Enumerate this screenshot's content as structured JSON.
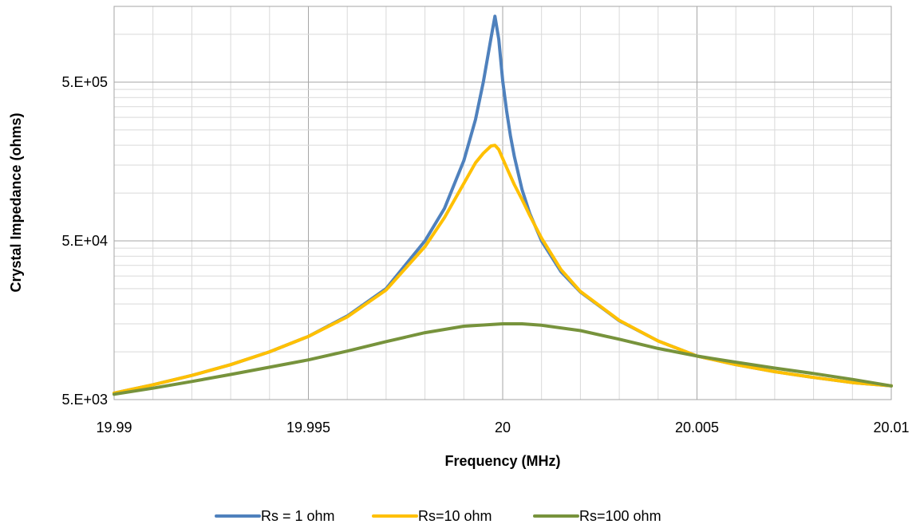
{
  "chart_data": {
    "type": "line",
    "title": "",
    "xlabel": "Frequency (MHz)",
    "ylabel": "Crystal Impedance (ohms)",
    "x_scale": "linear",
    "y_scale": "log",
    "xlim": [
      19.99,
      20.01
    ],
    "ylim": [
      5000,
      1500000
    ],
    "x_ticks": [
      {
        "value": 19.99,
        "label": "19.99"
      },
      {
        "value": 19.995,
        "label": "19.995"
      },
      {
        "value": 20.0,
        "label": "20"
      },
      {
        "value": 20.005,
        "label": "20.005"
      },
      {
        "value": 20.01,
        "label": "20.01"
      }
    ],
    "y_ticks": [
      {
        "value": 5000,
        "label": "5.E+03"
      },
      {
        "value": 50000,
        "label": "5.E+04"
      },
      {
        "value": 500000,
        "label": "5.E+05"
      }
    ],
    "grid": true,
    "legend_position": "bottom",
    "series": [
      {
        "name": "Rs = 1 ohm",
        "color": "#4f81bd",
        "x": [
          19.99,
          19.991,
          19.992,
          19.993,
          19.994,
          19.995,
          19.996,
          19.997,
          19.998,
          19.9985,
          19.999,
          19.9993,
          19.9995,
          19.9997,
          19.9998,
          19.9999,
          20.0,
          20.0001,
          20.0002,
          20.0003,
          20.0005,
          20.0007,
          20.001,
          20.0015,
          20.002,
          20.003,
          20.004,
          20.005,
          20.006,
          20.007,
          20.008,
          20.009,
          20.01
        ],
        "y": [
          5500,
          6200,
          7100,
          8300,
          10000,
          12500,
          16800,
          25000,
          50000,
          80000,
          160000,
          290000,
          500000,
          950000,
          1300000,
          930000,
          510000,
          330000,
          230000,
          170000,
          105000,
          74000,
          50000,
          32000,
          23800,
          15700,
          11700,
          9400,
          8300,
          7500,
          6900,
          6400,
          6100
        ]
      },
      {
        "name": "Rs=10 ohm",
        "color": "#ffc000",
        "x": [
          19.99,
          19.991,
          19.992,
          19.993,
          19.994,
          19.995,
          19.996,
          19.997,
          19.998,
          19.9985,
          19.999,
          19.9993,
          19.9995,
          19.9997,
          19.9998,
          19.9999,
          20.0,
          20.0001,
          20.0002,
          20.0003,
          20.0005,
          20.0007,
          20.001,
          20.0015,
          20.002,
          20.003,
          20.004,
          20.005,
          20.006,
          20.007,
          20.008,
          20.009,
          20.01
        ],
        "y": [
          5500,
          6200,
          7100,
          8300,
          10000,
          12500,
          16600,
          24500,
          46000,
          70000,
          115000,
          155000,
          178000,
          198000,
          200000,
          188000,
          165000,
          145000,
          128000,
          113000,
          91000,
          72000,
          52000,
          33000,
          24000,
          15800,
          11700,
          9400,
          8300,
          7500,
          6900,
          6400,
          6100
        ]
      },
      {
        "name": "Rs=100 ohm",
        "color": "#77933c",
        "x": [
          19.99,
          19.991,
          19.992,
          19.993,
          19.994,
          19.995,
          19.996,
          19.997,
          19.998,
          19.999,
          20.0,
          20.0005,
          20.001,
          20.002,
          20.003,
          20.004,
          20.005,
          20.006,
          20.007,
          20.008,
          20.009,
          20.01
        ],
        "y": [
          5400,
          5900,
          6500,
          7200,
          8000,
          8900,
          10100,
          11600,
          13200,
          14500,
          15000,
          15000,
          14700,
          13600,
          12000,
          10500,
          9400,
          8600,
          7900,
          7300,
          6700,
          6100
        ]
      }
    ]
  }
}
